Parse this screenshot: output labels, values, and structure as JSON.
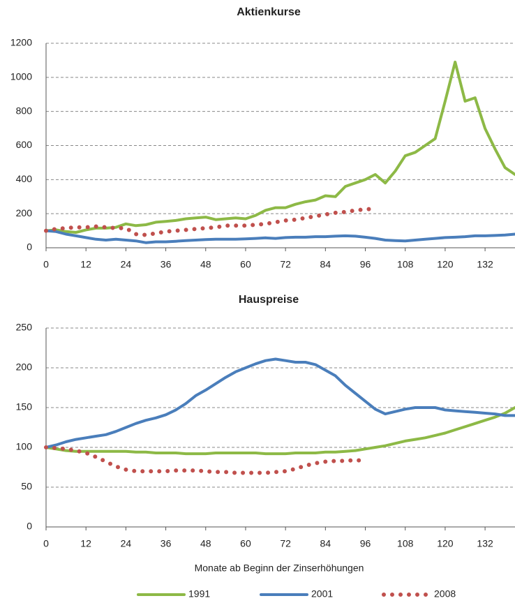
{
  "chart_data": [
    {
      "type": "line",
      "title": "Aktienkurse",
      "x": [
        0,
        3,
        6,
        9,
        12,
        15,
        18,
        21,
        24,
        27,
        30,
        33,
        36,
        39,
        42,
        45,
        48,
        51,
        54,
        57,
        60,
        63,
        66,
        69,
        72,
        75,
        78,
        81,
        84,
        87,
        90,
        93,
        96,
        99,
        102,
        105,
        108,
        111,
        114,
        117,
        120,
        123,
        126,
        129,
        132,
        135,
        138,
        141
      ],
      "xlim": [
        0,
        141
      ],
      "xticks": [
        0,
        12,
        24,
        36,
        48,
        60,
        72,
        84,
        96,
        108,
        120,
        132
      ],
      "ylim": [
        0,
        1200
      ],
      "yticks": [
        0,
        200,
        400,
        600,
        800,
        1000,
        1200
      ],
      "grid": true,
      "series": [
        {
          "color": "#8db946",
          "values": [
            100,
            105,
            95,
            90,
            105,
            115,
            115,
            120,
            140,
            130,
            135,
            150,
            155,
            160,
            170,
            175,
            180,
            165,
            170,
            175,
            170,
            190,
            220,
            235,
            235,
            255,
            270,
            280,
            305,
            300,
            360,
            380,
            400,
            430,
            380,
            450,
            540,
            560,
            600,
            640,
            860,
            1090,
            860,
            880,
            700,
            580,
            470,
            430
          ]
        },
        {
          "color": "#4a7ebb",
          "values": [
            100,
            95,
            80,
            70,
            60,
            50,
            45,
            50,
            45,
            40,
            30,
            35,
            35,
            38,
            42,
            45,
            48,
            50,
            50,
            50,
            52,
            55,
            58,
            55,
            60,
            62,
            62,
            65,
            65,
            68,
            70,
            68,
            62,
            55,
            45,
            42,
            40,
            45,
            50,
            55,
            60,
            62,
            65,
            70,
            70,
            72,
            75,
            80
          ]
        },
        {
          "color": "#c0504d",
          "style": "dotted",
          "values": [
            100,
            110,
            115,
            120,
            120,
            125,
            120,
            115,
            115,
            80,
            75,
            85,
            95,
            100,
            105,
            110,
            115,
            120,
            130,
            130,
            130,
            135,
            140,
            150,
            160,
            165,
            175,
            185,
            195,
            205,
            210,
            220,
            225,
            230,
            null,
            null,
            null,
            null,
            null,
            null,
            null,
            null,
            null,
            null,
            null,
            null,
            null,
            null
          ]
        }
      ]
    },
    {
      "type": "line",
      "title": "Hauspreise",
      "x_label": "Monate ab Beginn der Zinserhöhungen",
      "x": [
        0,
        3,
        6,
        9,
        12,
        15,
        18,
        21,
        24,
        27,
        30,
        33,
        36,
        39,
        42,
        45,
        48,
        51,
        54,
        57,
        60,
        63,
        66,
        69,
        72,
        75,
        78,
        81,
        84,
        87,
        90,
        93,
        96,
        99,
        102,
        105,
        108,
        111,
        114,
        117,
        120,
        123,
        126,
        129,
        132,
        135,
        138,
        141
      ],
      "xlim": [
        0,
        141
      ],
      "xticks": [
        0,
        12,
        24,
        36,
        48,
        60,
        72,
        84,
        96,
        108,
        120,
        132
      ],
      "ylim": [
        0,
        250
      ],
      "yticks": [
        0,
        50,
        100,
        150,
        200,
        250
      ],
      "grid": true,
      "legend": "bottom",
      "series": [
        {
          "name": "1991",
          "color": "#8db946",
          "values": [
            100,
            98,
            96,
            95,
            95,
            95,
            95,
            95,
            95,
            94,
            94,
            93,
            93,
            93,
            92,
            92,
            92,
            93,
            93,
            93,
            93,
            93,
            92,
            92,
            92,
            93,
            93,
            93,
            94,
            94,
            95,
            96,
            98,
            100,
            102,
            105,
            108,
            110,
            112,
            115,
            118,
            122,
            126,
            130,
            134,
            138,
            143,
            150
          ]
        },
        {
          "name": "2001",
          "color": "#4a7ebb",
          "values": [
            100,
            103,
            107,
            110,
            112,
            114,
            116,
            120,
            125,
            130,
            134,
            137,
            141,
            147,
            155,
            165,
            172,
            180,
            188,
            195,
            200,
            205,
            209,
            211,
            209,
            207,
            207,
            204,
            197,
            190,
            178,
            168,
            158,
            148,
            142,
            145,
            148,
            150,
            150,
            150,
            147,
            146,
            145,
            144,
            143,
            142,
            140,
            140
          ]
        },
        {
          "name": "2008",
          "color": "#c0504d",
          "style": "dotted",
          "values": [
            100,
            99,
            98,
            96,
            93,
            88,
            82,
            76,
            72,
            70,
            70,
            70,
            70,
            71,
            71,
            71,
            70,
            69,
            69,
            68,
            68,
            68,
            68,
            69,
            70,
            73,
            77,
            80,
            82,
            83,
            83,
            84,
            83,
            null,
            null,
            null,
            null,
            null,
            null,
            null,
            null,
            null,
            null,
            null,
            null,
            null,
            null,
            null
          ]
        }
      ]
    }
  ]
}
